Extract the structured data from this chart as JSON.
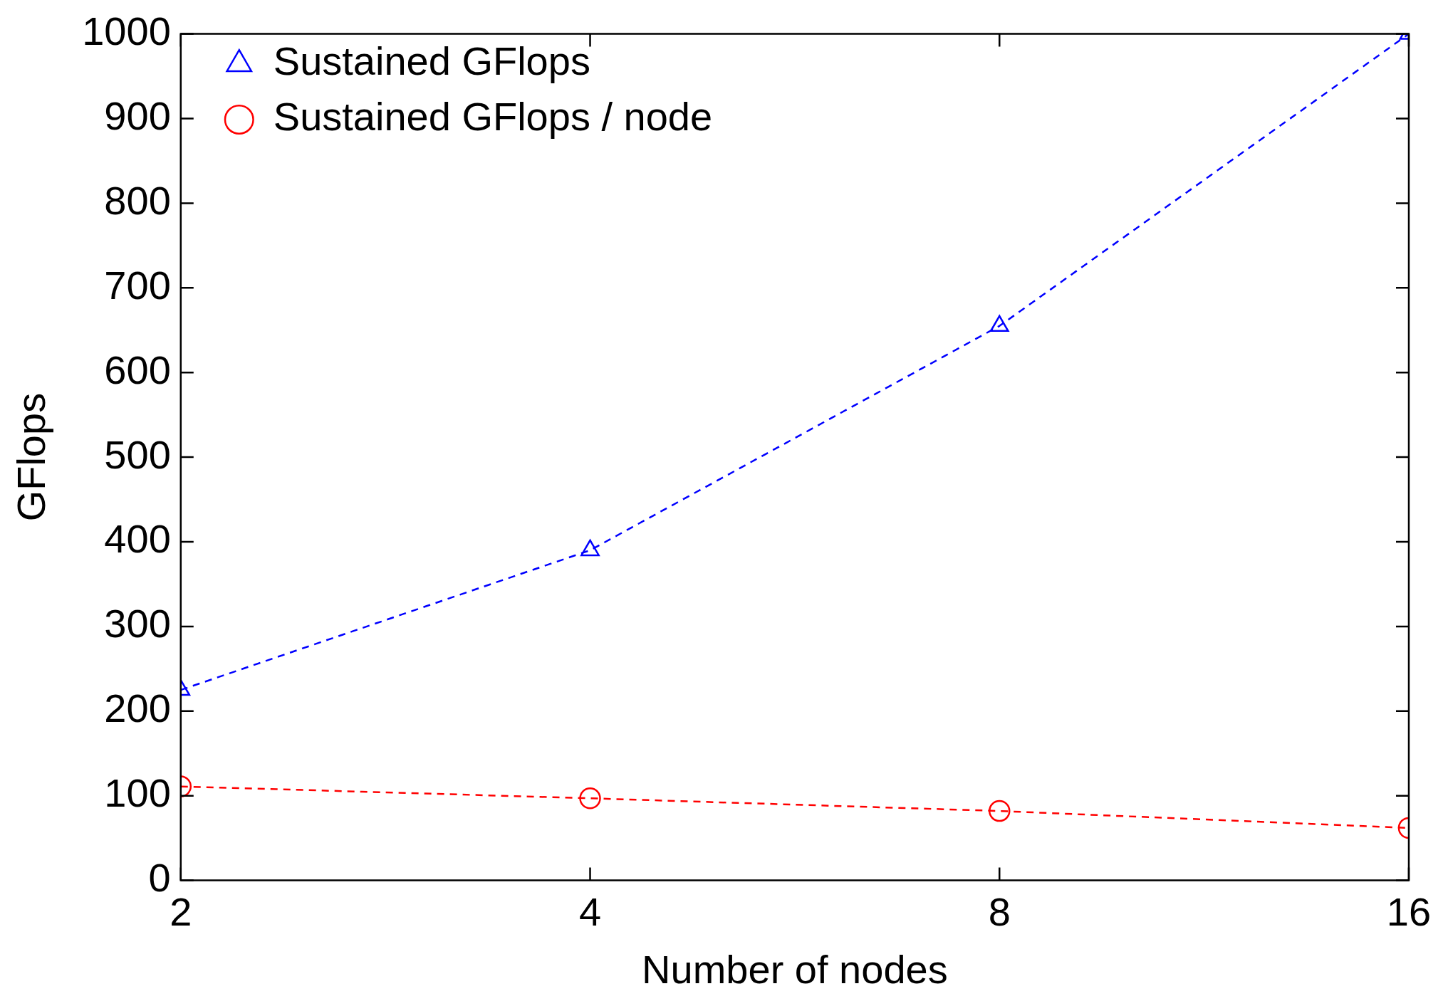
{
  "chart_data": {
    "type": "line",
    "xlabel": "Number of nodes",
    "ylabel": "GFlops",
    "x": [
      2,
      4,
      8,
      16
    ],
    "log": "x",
    "xlim": [
      2,
      16
    ],
    "xticks": [
      2,
      4,
      8,
      16
    ],
    "ylim": [
      0,
      1000
    ],
    "yticks": [
      0,
      100,
      200,
      300,
      400,
      500,
      600,
      700,
      800,
      900,
      1000
    ],
    "grid": false,
    "legend": "top left",
    "line_style": "dashed",
    "series": [
      {
        "name": "Sustained GFlops",
        "color": "#0000ff",
        "marker": "triangle",
        "values": [
          225,
          390,
          655,
          1000
        ]
      },
      {
        "name": "Sustained GFlops / node",
        "color": "#ff0000",
        "marker": "circle",
        "values": [
          111,
          97,
          82,
          62
        ]
      }
    ]
  }
}
